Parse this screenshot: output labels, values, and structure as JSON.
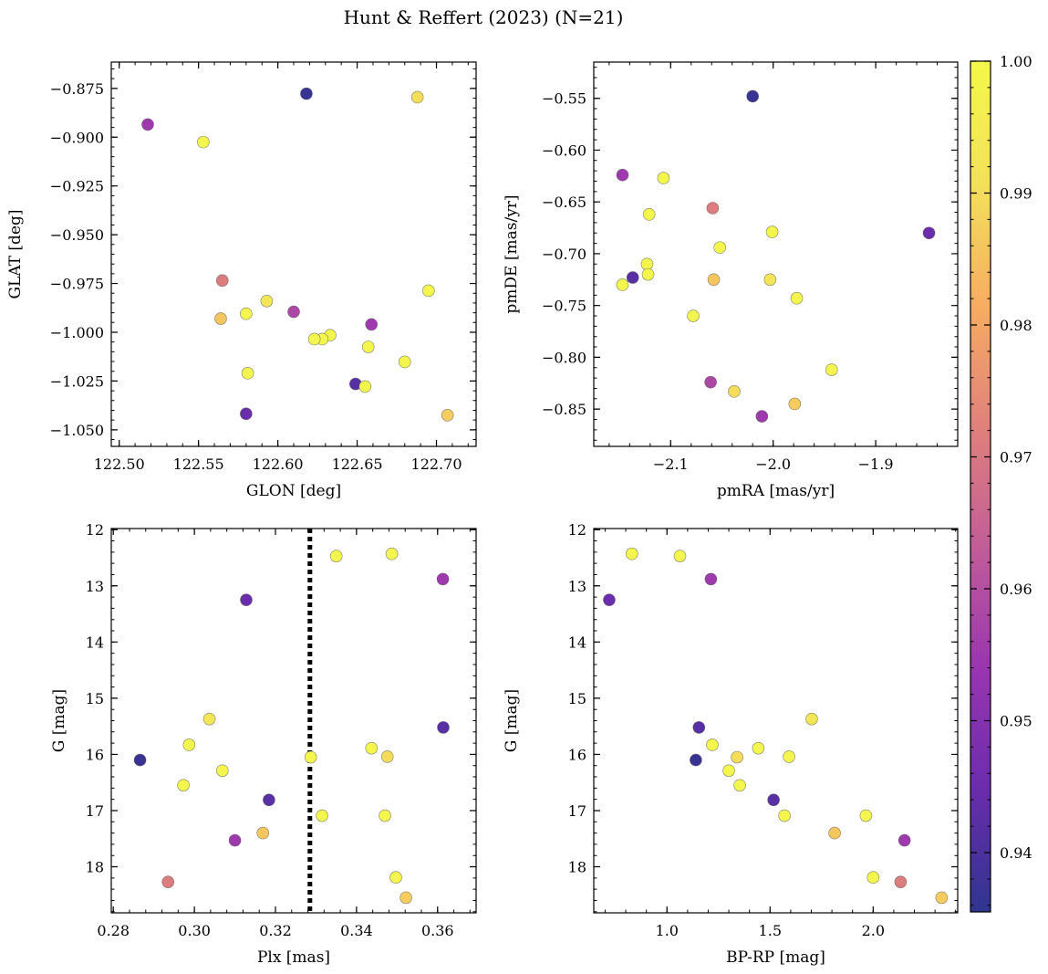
{
  "title": "Hunt & Reffert (2023) (N=21)",
  "colormap": {
    "name": "plasma",
    "stops": [
      "#2f358f",
      "#6a2cad",
      "#9935b0",
      "#c15d98",
      "#e0817b",
      "#f7ad62",
      "#f3e15a",
      "#f4f74b"
    ],
    "range": [
      0.9355,
      1.0
    ],
    "ticks": [
      "1.00",
      "0.99",
      "0.98",
      "0.97",
      "0.96",
      "0.95",
      "0.94"
    ],
    "tick_values": [
      1.0,
      0.99,
      0.98,
      0.97,
      0.96,
      0.95,
      0.94
    ]
  },
  "chart_data": [
    {
      "type": "scatter",
      "xlabel": "GLON [deg]",
      "ylabel": "GLAT [deg]",
      "xlim": [
        122.495,
        122.725
      ],
      "ylim": [
        -1.0585,
        -0.8615
      ],
      "xticks": [
        "122.50",
        "122.55",
        "122.60",
        "122.65",
        "122.70"
      ],
      "xtick_values": [
        122.5,
        122.55,
        122.6,
        122.65,
        122.7
      ],
      "yticks": [
        "−0.875",
        "−0.900",
        "−0.925",
        "−0.950",
        "−0.975",
        "−1.000",
        "−1.025",
        "−1.050"
      ],
      "ytick_values": [
        -0.875,
        -0.9,
        -0.925,
        -0.95,
        -0.975,
        -1.0,
        -1.025,
        -1.05
      ],
      "x": [
        122.518,
        122.618,
        122.688,
        122.553,
        122.565,
        122.695,
        122.593,
        122.58,
        122.564,
        122.61,
        122.659,
        122.633,
        122.628,
        122.623,
        122.657,
        122.68,
        122.581,
        122.649,
        122.655,
        122.58,
        122.707
      ],
      "y": [
        -0.8935,
        -0.8777,
        -0.8795,
        -0.9025,
        -0.9735,
        -0.9787,
        -0.984,
        -0.9905,
        -0.993,
        -0.9895,
        -0.996,
        -1.0015,
        -1.0035,
        -1.0035,
        -1.0075,
        -1.0152,
        -1.021,
        -1.0265,
        -1.0278,
        -1.0418,
        -1.0425
      ],
      "c": [
        0.955,
        0.937,
        0.99,
        0.999,
        0.971,
        0.999,
        0.993,
        0.999,
        0.986,
        0.958,
        0.955,
        0.999,
        0.999,
        0.999,
        0.999,
        0.999,
        0.999,
        0.942,
        0.999,
        0.945,
        0.987
      ]
    },
    {
      "type": "scatter",
      "xlabel": "pmRA [mas/yr]",
      "ylabel": "pmDE [mas/yr]",
      "xlim": [
        -2.175,
        -1.82
      ],
      "ylim": [
        -0.886,
        -0.515
      ],
      "xticks": [
        "−2.1",
        "−2.0",
        "−1.9"
      ],
      "xtick_values": [
        -2.1,
        -2.0,
        -1.9
      ],
      "yticks": [
        "−0.55",
        "−0.60",
        "−0.65",
        "−0.70",
        "−0.75",
        "−0.80",
        "−0.85"
      ],
      "ytick_values": [
        -0.55,
        -0.6,
        -0.65,
        -0.7,
        -0.75,
        -0.8,
        -0.85
      ],
      "x": [
        -2.02,
        -2.147,
        -2.107,
        -2.059,
        -2.121,
        -2.001,
        -1.848,
        -2.052,
        -2.123,
        -2.137,
        -2.122,
        -2.147,
        -2.058,
        -2.003,
        -1.977,
        -2.078,
        -1.943,
        -2.061,
        -2.038,
        -1.979,
        -2.011
      ],
      "y": [
        -0.548,
        -0.624,
        -0.627,
        -0.656,
        -0.662,
        -0.679,
        -0.68,
        -0.694,
        -0.71,
        -0.723,
        -0.72,
        -0.73,
        -0.725,
        -0.725,
        -0.743,
        -0.76,
        -0.812,
        -0.824,
        -0.833,
        -0.845,
        -0.857
      ],
      "c": [
        0.937,
        0.955,
        0.999,
        0.971,
        0.999,
        0.999,
        0.945,
        0.999,
        0.999,
        0.942,
        0.999,
        0.999,
        0.986,
        0.993,
        0.999,
        0.999,
        0.999,
        0.958,
        0.99,
        0.987,
        0.955
      ]
    },
    {
      "type": "scatter",
      "xlabel": "Plx [mas]",
      "ylabel": "G [mag]",
      "xlim": [
        0.2795,
        0.3695
      ],
      "ylim": [
        18.82,
        11.98
      ],
      "xticks": [
        "0.28",
        "0.30",
        "0.32",
        "0.34",
        "0.36"
      ],
      "xtick_values": [
        0.28,
        0.3,
        0.32,
        0.34,
        0.36
      ],
      "yticks": [
        "12",
        "13",
        "14",
        "15",
        "16",
        "17",
        "18"
      ],
      "ytick_values": [
        12,
        13,
        14,
        15,
        16,
        17,
        18
      ],
      "vline": 0.3285,
      "x": [
        0.3487,
        0.335,
        0.3613,
        0.3128,
        0.3037,
        0.3614,
        0.2987,
        0.3437,
        0.3476,
        0.3287,
        0.2866,
        0.3069,
        0.2973,
        0.3184,
        0.3315,
        0.347,
        0.3169,
        0.31,
        0.3497,
        0.2935,
        0.3522
      ],
      "y": [
        12.43,
        12.47,
        12.88,
        13.25,
        15.37,
        15.52,
        15.83,
        15.89,
        16.04,
        16.05,
        16.1,
        16.29,
        16.55,
        16.81,
        17.09,
        17.09,
        17.4,
        17.53,
        18.19,
        18.27,
        18.55
      ],
      "c": [
        0.999,
        0.999,
        0.955,
        0.945,
        0.993,
        0.942,
        0.999,
        0.999,
        0.99,
        0.999,
        0.937,
        0.999,
        0.999,
        0.942,
        0.999,
        0.999,
        0.986,
        0.955,
        0.999,
        0.971,
        0.987
      ]
    },
    {
      "type": "scatter",
      "xlabel": "BP-RP [mag]",
      "ylabel": "G [mag]",
      "xlim": [
        0.645,
        2.41
      ],
      "ylim": [
        18.82,
        11.98
      ],
      "xticks": [
        "1.0",
        "1.5",
        "2.0"
      ],
      "xtick_values": [
        1.0,
        1.5,
        2.0
      ],
      "yticks": [
        "12",
        "13",
        "14",
        "15",
        "16",
        "17",
        "18"
      ],
      "ytick_values": [
        12,
        13,
        14,
        15,
        16,
        17,
        18
      ],
      "x": [
        0.83,
        1.063,
        1.213,
        0.72,
        1.702,
        1.155,
        1.22,
        1.443,
        1.592,
        1.34,
        1.14,
        1.3,
        1.353,
        1.517,
        1.57,
        1.965,
        1.813,
        2.152,
        2.0,
        2.133,
        2.332
      ],
      "y": [
        12.43,
        12.47,
        12.88,
        13.25,
        15.37,
        15.52,
        15.83,
        15.89,
        16.04,
        16.05,
        16.1,
        16.29,
        16.55,
        16.81,
        17.09,
        17.09,
        17.4,
        17.53,
        18.19,
        18.27,
        18.55
      ],
      "c": [
        0.999,
        0.999,
        0.955,
        0.945,
        0.993,
        0.942,
        0.999,
        0.999,
        0.999,
        0.99,
        0.937,
        0.999,
        0.999,
        0.942,
        0.999,
        0.999,
        0.986,
        0.955,
        0.999,
        0.971,
        0.987
      ]
    }
  ]
}
